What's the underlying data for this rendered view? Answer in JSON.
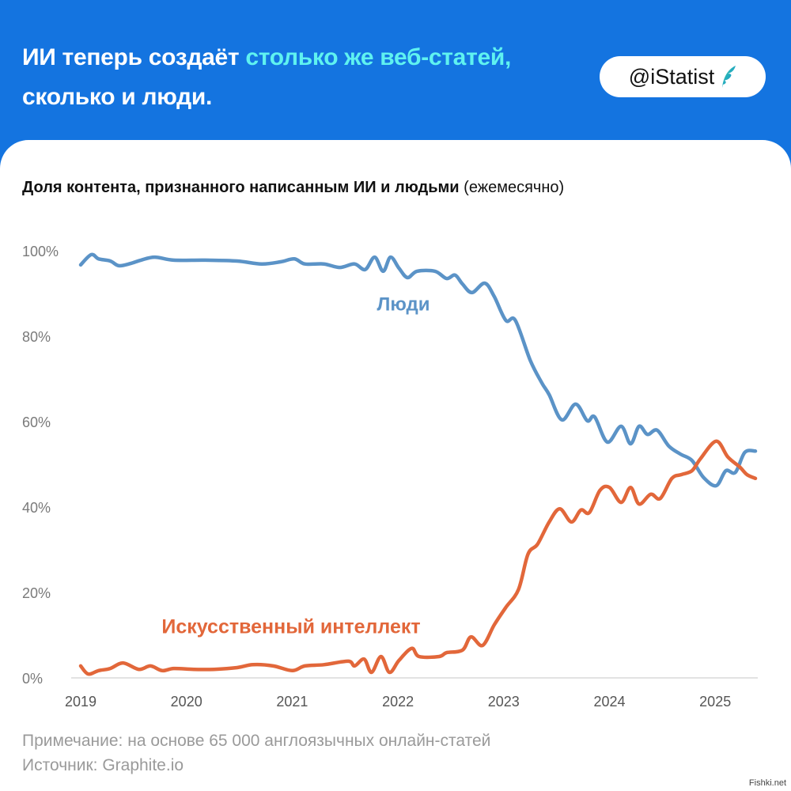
{
  "header": {
    "title_part1": "ИИ теперь создаёт ",
    "title_highlight": "столько же веб-статей,",
    "title_part2": "сколько и люди.",
    "badge": "@iStatist",
    "badge_icon": "feather-logo-icon"
  },
  "colors": {
    "header_bg": "#1474e0",
    "highlight": "#5ff2f0",
    "humans": "#5b93c7",
    "ai": "#e2673a"
  },
  "chart_data": {
    "type": "line",
    "title": "Доля контента, признанного написанным ИИ и людьми",
    "title_suffix": "(ежемесячно)",
    "xlim": [
      2019,
      2025.4
    ],
    "ylim": [
      0,
      100
    ],
    "x_ticks": [
      "2019",
      "2020",
      "2021",
      "2022",
      "2023",
      "2024",
      "2025"
    ],
    "y_ticks": [
      "0%",
      "20%",
      "40%",
      "60%",
      "80%",
      "100%"
    ],
    "grid": false,
    "series": [
      {
        "name": "Люди",
        "color": "#5b93c7",
        "x": [
          2019.0,
          2019.1,
          2019.17,
          2019.28,
          2019.36,
          2019.47,
          2019.57,
          2019.7,
          2019.88,
          2020.18,
          2020.48,
          2020.71,
          2020.89,
          2021.02,
          2021.12,
          2021.3,
          2021.45,
          2021.59,
          2021.69,
          2021.78,
          2021.86,
          2021.93,
          2022.01,
          2022.09,
          2022.18,
          2022.35,
          2022.46,
          2022.54,
          2022.61,
          2022.7,
          2022.82,
          2022.91,
          2023.02,
          2023.11,
          2023.25,
          2023.36,
          2023.43,
          2023.55,
          2023.68,
          2023.79,
          2023.86,
          2023.98,
          2024.11,
          2024.2,
          2024.28,
          2024.36,
          2024.45,
          2024.56,
          2024.67,
          2024.78,
          2024.89,
          2025.01,
          2025.1,
          2025.19,
          2025.28,
          2025.38
        ],
        "y": [
          96.7,
          99.1,
          98.1,
          97.6,
          96.5,
          97.0,
          97.8,
          98.5,
          97.8,
          97.8,
          97.6,
          96.9,
          97.4,
          98.1,
          96.9,
          96.9,
          96.1,
          96.9,
          95.6,
          98.5,
          95.2,
          98.5,
          95.9,
          93.7,
          95.2,
          95.2,
          93.5,
          94.3,
          92.2,
          90.2,
          92.4,
          89.3,
          83.7,
          83.7,
          74.4,
          69.1,
          66.3,
          60.4,
          64.1,
          60.2,
          61.1,
          55.2,
          58.9,
          54.8,
          58.9,
          57.0,
          58.0,
          54.3,
          52.4,
          50.9,
          46.9,
          45.0,
          48.5,
          48.1,
          52.8,
          53.1
        ]
      },
      {
        "name": "Искусственный интеллект",
        "color": "#e2673a",
        "x": [
          2019.0,
          2019.07,
          2019.17,
          2019.28,
          2019.4,
          2019.55,
          2019.66,
          2019.77,
          2019.88,
          2020.07,
          2020.26,
          2020.48,
          2020.63,
          2020.82,
          2021.0,
          2021.12,
          2021.3,
          2021.53,
          2021.59,
          2021.68,
          2021.75,
          2021.84,
          2021.92,
          2022.01,
          2022.13,
          2022.2,
          2022.39,
          2022.46,
          2022.61,
          2022.69,
          2022.8,
          2022.91,
          2023.02,
          2023.14,
          2023.23,
          2023.32,
          2023.43,
          2023.53,
          2023.64,
          2023.73,
          2023.81,
          2023.91,
          2024.0,
          2024.11,
          2024.2,
          2024.28,
          2024.39,
          2024.48,
          2024.59,
          2024.68,
          2024.78,
          2024.86,
          2025.01,
          2025.12,
          2025.23,
          2025.3,
          2025.38
        ],
        "y": [
          2.8,
          0.9,
          1.7,
          2.2,
          3.5,
          2.0,
          2.8,
          1.7,
          2.2,
          2.0,
          2.0,
          2.4,
          3.1,
          2.8,
          1.7,
          2.8,
          3.1,
          3.9,
          2.8,
          4.4,
          1.3,
          5.0,
          1.3,
          4.1,
          6.9,
          5.0,
          5.0,
          5.9,
          6.5,
          9.6,
          7.6,
          12.4,
          16.5,
          20.7,
          29.0,
          31.3,
          36.5,
          39.6,
          36.5,
          39.3,
          38.7,
          43.9,
          44.6,
          41.1,
          44.6,
          40.7,
          43.0,
          42.0,
          46.7,
          47.6,
          48.5,
          51.3,
          55.4,
          51.7,
          49.4,
          47.6,
          46.7
        ]
      }
    ]
  },
  "footer": {
    "note": "Примечание: на основе 65 000 англоязычных онлайн-статей",
    "source": "Источник: Graphite.io",
    "watermark": "Fishki.net"
  }
}
